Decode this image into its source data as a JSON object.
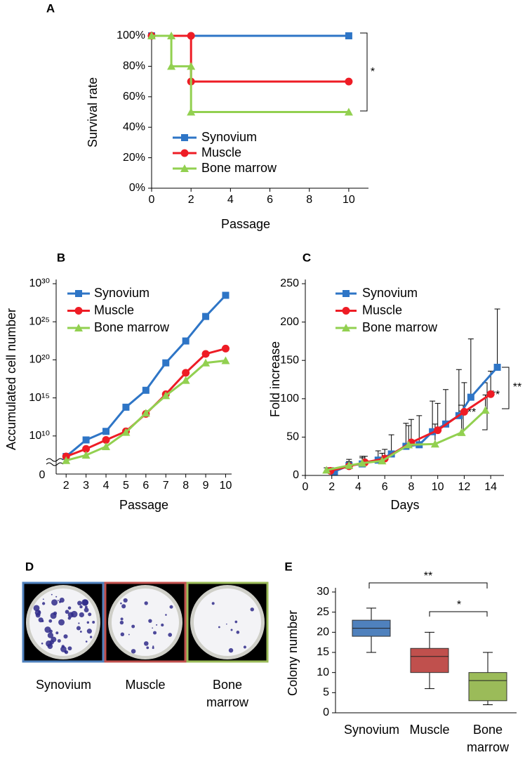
{
  "chart_data": [
    {
      "panel": "A",
      "type": "line",
      "y_label": "Survival rate",
      "x_label": "Passage",
      "xlim": [
        0,
        11
      ],
      "xticks": [
        0,
        2,
        4,
        6,
        8,
        10
      ],
      "ylim": [
        0,
        100
      ],
      "yticks": [
        {
          "value": 0,
          "label": "0%"
        },
        {
          "value": 20,
          "label": "20%"
        },
        {
          "value": 40,
          "label": "40%"
        },
        {
          "value": 60,
          "label": "60%"
        },
        {
          "value": 80,
          "label": "80%"
        },
        {
          "value": 100,
          "label": "100%"
        }
      ],
      "legend": "lower left",
      "series": [
        {
          "name": "Synovium",
          "color": "#2e75c6",
          "marker": "square",
          "x": [
            0,
            10
          ],
          "values": [
            100,
            100
          ]
        },
        {
          "name": "Muscle",
          "color": "#ee1c25",
          "marker": "circle",
          "x": [
            0,
            2,
            2,
            10
          ],
          "values": [
            100,
            100,
            70,
            70
          ]
        },
        {
          "name": "Bone marrow",
          "color": "#92d050",
          "marker": "triangle",
          "x": [
            0,
            1,
            1,
            2,
            2,
            10
          ],
          "values": [
            100,
            100,
            80,
            80,
            50,
            50
          ]
        }
      ],
      "annotations": [
        "*"
      ]
    },
    {
      "panel": "B",
      "type": "line",
      "y_label": "Accumulated cell number",
      "x_label": "Passage",
      "yscale": "log",
      "ylim": [
        100000.0,
        1e+30
      ],
      "yticks": [
        {
          "value": 10000000000.0,
          "label": "10¹⁰"
        },
        {
          "value": 1000000000000000.0,
          "label": "10¹⁵"
        },
        {
          "value": 1e+20,
          "label": "10²⁰"
        },
        {
          "value": 1e+25,
          "label": "10²⁵"
        },
        {
          "value": 1e+30,
          "label": "10³⁰"
        }
      ],
      "axis_break_label": "0",
      "xlim": [
        1.5,
        10.3
      ],
      "xticks": [
        2,
        3,
        4,
        5,
        6,
        7,
        8,
        9,
        10
      ],
      "x": [
        2,
        3,
        4,
        5,
        6,
        7,
        8,
        9,
        10
      ],
      "legend": "upper left",
      "series": [
        {
          "name": "Synovium",
          "color": "#2e75c6",
          "marker": "square",
          "values": [
            20000000.0,
            3000000000.0,
            40000000000.0,
            60000000000000.0,
            1e+16,
            4e+19,
            3e+22,
            5e+25,
            3e+28
          ]
        },
        {
          "name": "Muscle",
          "color": "#ee1c25",
          "marker": "circle",
          "values": [
            20000000.0,
            200000000.0,
            3000000000.0,
            40000000000.0,
            8000000000000.0,
            3000000000000000.0,
            2e+18,
            6e+20,
            3e+21
          ]
        },
        {
          "name": "Bone marrow",
          "color": "#92d050",
          "marker": "triangle",
          "values": [
            6000000.0,
            30000000.0,
            400000000.0,
            30000000000.0,
            10000000000000.0,
            2000000000000000.0,
            2e+17,
            4e+19,
            8e+19
          ]
        }
      ]
    },
    {
      "panel": "C",
      "type": "line",
      "y_label": "Fold increase",
      "x_label": "Days",
      "xlim": [
        0,
        15
      ],
      "xticks": [
        0,
        2,
        4,
        6,
        8,
        10,
        12,
        14
      ],
      "ylim": [
        0,
        250
      ],
      "yticks": [
        0,
        50,
        100,
        150,
        200,
        250
      ],
      "legend": "upper left",
      "series": [
        {
          "name": "Synovium",
          "color": "#2e75c6",
          "marker": "square",
          "x": [
            2.2,
            3.3,
            4.3,
            5.5,
            6.5,
            7.6,
            8.6,
            9.6,
            10.6,
            11.6,
            12.5,
            14.5
          ],
          "values": [
            5,
            13,
            15,
            20,
            28,
            38,
            40,
            57,
            67,
            78,
            102,
            141
          ],
          "errors": [
            5,
            8,
            10,
            12,
            25,
            30,
            38,
            40,
            45,
            60,
            76,
            76
          ]
        },
        {
          "name": "Muscle",
          "color": "#ee1c25",
          "marker": "circle",
          "x": [
            1.9,
            3.3,
            4.5,
            6.0,
            8.0,
            10.0,
            12.0,
            14.0
          ],
          "values": [
            6,
            12,
            17,
            22,
            43,
            59,
            83,
            106
          ],
          "errors": [
            4,
            6,
            8,
            12,
            30,
            35,
            38,
            30
          ]
        },
        {
          "name": "Bone marrow",
          "color": "#92d050",
          "marker": "triangle",
          "x": [
            1.6,
            3.3,
            4.3,
            5.8,
            7.8,
            9.8,
            11.8,
            13.6
          ],
          "values": [
            7,
            13,
            16,
            19,
            40,
            41,
            56,
            85
          ],
          "errors": [
            3,
            5,
            7,
            10,
            25,
            26,
            28,
            20
          ]
        }
      ],
      "annotations": [
        "**",
        "**",
        "**"
      ]
    },
    {
      "panel": "E",
      "type": "box",
      "y_label": "Colony number",
      "ylim": [
        0,
        30
      ],
      "yticks": [
        0,
        5,
        10,
        15,
        20,
        25,
        30
      ],
      "categories": [
        "Synovium",
        "Muscle",
        "Bone marrow"
      ],
      "boxes": [
        {
          "color": "#4f81bd",
          "min": 15,
          "q1": 19,
          "median": 21,
          "q3": 23,
          "max": 26
        },
        {
          "color": "#c0504d",
          "min": 6,
          "q1": 10,
          "median": 14,
          "q3": 16,
          "max": 20
        },
        {
          "color": "#9bbb59",
          "min": 2,
          "q1": 3,
          "median": 8,
          "q3": 10,
          "max": 15
        }
      ],
      "annotations": [
        "**",
        "*"
      ]
    }
  ],
  "panel_d": {
    "panel": "D",
    "labels": [
      "Synovium",
      "Muscle",
      "Bone marrow"
    ],
    "frame_colors": [
      "#4f81bd",
      "#c0504d",
      "#9bbb59"
    ]
  }
}
